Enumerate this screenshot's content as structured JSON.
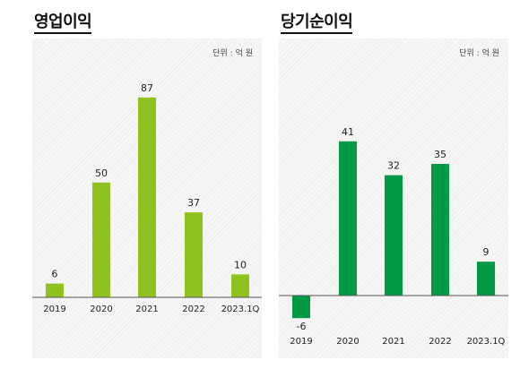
{
  "chart_data": [
    {
      "type": "bar",
      "title": "영업이익",
      "unit_label": "단위 : 억 원",
      "categories": [
        "2019",
        "2020",
        "2021",
        "2022",
        "2023.1Q"
      ],
      "values": [
        6,
        50,
        87,
        37,
        10
      ],
      "color": "#8dc21f",
      "ylim": [
        0,
        87
      ],
      "grid": false
    },
    {
      "type": "bar",
      "title": "당기순이익",
      "unit_label": "단위 : 억 원",
      "categories": [
        "2019",
        "2020",
        "2021",
        "2022",
        "2023.1Q"
      ],
      "values": [
        -6,
        41,
        32,
        35,
        9
      ],
      "color": "#009a44",
      "ylim": [
        -6,
        41
      ],
      "grid": false
    }
  ]
}
